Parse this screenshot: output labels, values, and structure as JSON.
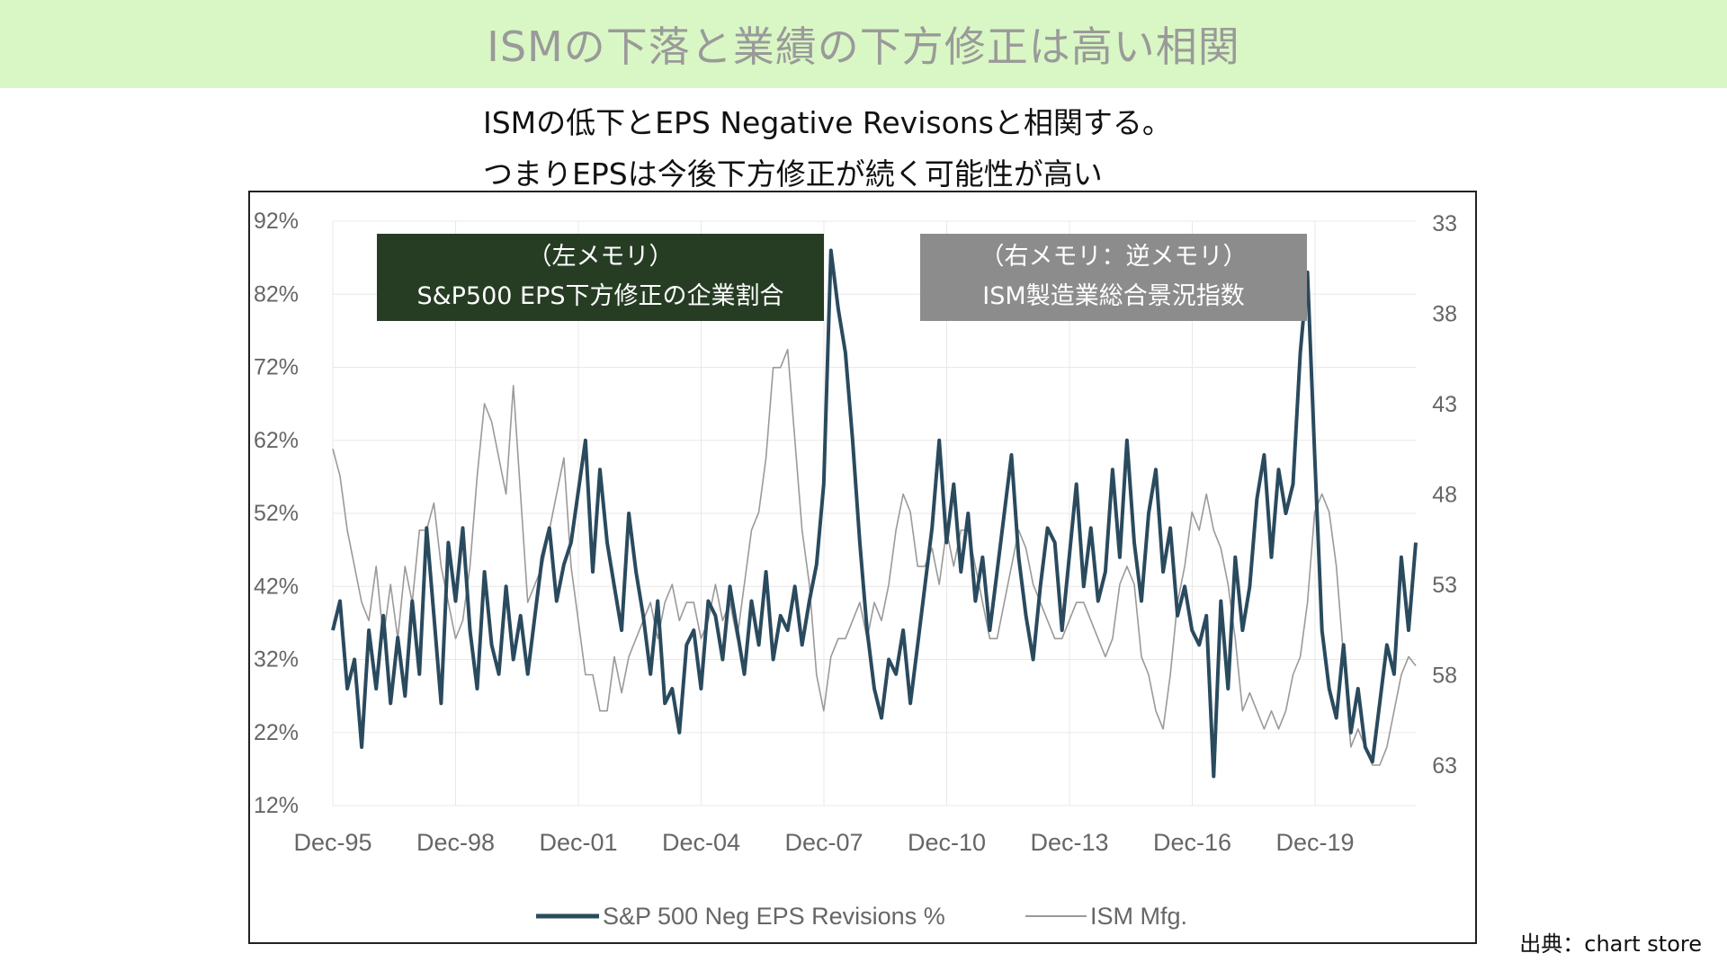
{
  "header": {
    "title": "ISMの下落と業績の下方修正は高い相関"
  },
  "subtitle": {
    "line1": "ISMの低下とEPS Negative Revisonsと相関する。",
    "line2": "つまりEPSは今後下方修正が続く可能性が高い"
  },
  "source": "出典：chart store",
  "annotations": {
    "left": {
      "line1": "（左メモリ）",
      "line2": "S&P500 EPS下方修正の企業割合"
    },
    "right": {
      "line1": "（右メモリ：逆メモリ）",
      "line2": "ISM製造業総合景況指数"
    }
  },
  "colors": {
    "banner": "#d9f7c4",
    "eps_series": "#2a4a5e",
    "ism_series": "#9a9a9a",
    "left_box": "#263d24",
    "right_box": "#8c8c8c"
  },
  "chart_data": {
    "type": "line",
    "x_ticks": [
      "Dec-95",
      "Dec-98",
      "Dec-01",
      "Dec-04",
      "Dec-07",
      "Dec-10",
      "Dec-13",
      "Dec-16",
      "Dec-19"
    ],
    "y_left": {
      "ticks": [
        "92%",
        "82%",
        "72%",
        "62%",
        "52%",
        "42%",
        "32%",
        "22%",
        "12%"
      ],
      "range": [
        12,
        92
      ]
    },
    "y_right": {
      "ticks": [
        "33",
        "38",
        "43",
        "48",
        "53",
        "58",
        "63"
      ],
      "range": [
        33,
        63
      ],
      "inverted": true
    },
    "grid": true,
    "legend_position": "bottom",
    "series": [
      {
        "name": "S&P 500 Neg EPS Revisions %",
        "axis": "left",
        "x_range": [
          "1995-12",
          "2022-06"
        ],
        "values": [
          36,
          40,
          28,
          32,
          20,
          36,
          28,
          38,
          26,
          35,
          27,
          40,
          30,
          50,
          38,
          26,
          48,
          40,
          50,
          36,
          28,
          44,
          34,
          30,
          42,
          32,
          38,
          30,
          38,
          46,
          50,
          40,
          45,
          48,
          55,
          62,
          44,
          58,
          48,
          42,
          36,
          52,
          44,
          38,
          30,
          40,
          26,
          28,
          22,
          34,
          36,
          28,
          40,
          38,
          32,
          42,
          36,
          30,
          40,
          34,
          44,
          32,
          38,
          36,
          42,
          34,
          40,
          45,
          56,
          88,
          80,
          74,
          62,
          48,
          36,
          28,
          24,
          32,
          30,
          36,
          26,
          34,
          42,
          50,
          62,
          48,
          56,
          44,
          52,
          40,
          46,
          36,
          44,
          52,
          60,
          46,
          38,
          32,
          42,
          50,
          48,
          36,
          46,
          56,
          42,
          50,
          40,
          44,
          58,
          46,
          62,
          48,
          40,
          52,
          58,
          44,
          50,
          38,
          42,
          36,
          34,
          38,
          16,
          40,
          28,
          46,
          36,
          42,
          54,
          60,
          46,
          58,
          52,
          56,
          74,
          85,
          60,
          36,
          28,
          24,
          34,
          22,
          28,
          20,
          18,
          26,
          34,
          30,
          46,
          36,
          48
        ]
      },
      {
        "name": "ISM Mfg.",
        "axis": "right",
        "x_range": [
          "1995-12",
          "2022-06"
        ],
        "values": [
          45.5,
          47,
          50,
          52,
          54,
          55,
          52,
          56,
          53,
          56,
          52,
          54,
          50,
          50,
          48.5,
          52,
          54,
          56,
          55,
          52,
          47,
          43,
          44,
          46,
          48,
          42,
          48,
          54,
          53,
          52,
          50,
          48,
          46,
          52,
          55,
          58,
          58,
          60,
          60,
          57,
          59,
          57,
          56,
          55,
          54,
          56,
          54,
          53,
          55,
          54,
          54,
          56,
          55,
          53,
          55,
          54,
          56,
          53,
          50,
          49,
          46,
          41,
          41,
          40,
          45,
          50,
          53,
          58,
          60,
          57,
          56,
          56,
          55,
          54,
          56,
          54,
          55,
          53,
          50,
          48,
          49,
          52,
          52,
          51,
          53,
          50,
          52,
          50,
          50,
          52,
          54,
          56,
          56,
          54,
          52,
          50,
          51,
          53,
          54,
          55,
          56,
          56,
          55,
          54,
          54,
          55,
          56,
          57,
          56,
          53,
          52,
          53,
          57,
          58,
          60,
          61,
          58,
          54,
          52,
          49,
          50,
          48,
          50,
          51,
          53,
          56,
          60,
          59,
          60,
          61,
          60,
          61,
          60,
          58,
          57,
          54,
          49,
          48,
          49,
          52,
          57,
          62,
          61,
          62,
          63,
          63,
          62,
          60,
          58,
          57,
          57.5
        ]
      }
    ]
  }
}
